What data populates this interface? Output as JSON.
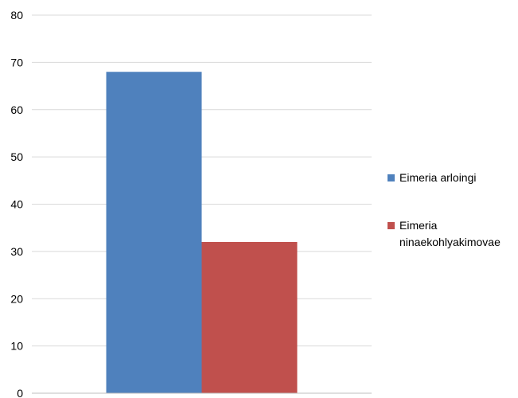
{
  "chart_data": {
    "type": "bar",
    "categories": [
      ""
    ],
    "series": [
      {
        "name": "Eimeria arloingi",
        "values": [
          68
        ],
        "color": "#4F81BD"
      },
      {
        "name": "Eimeria ninaekohlyakimovae",
        "name_lines": [
          "Eimeria",
          "ninaekohlyakimovae"
        ],
        "values": [
          32
        ],
        "color": "#C0504D"
      }
    ],
    "title": "",
    "xlabel": "",
    "ylabel": "",
    "ylim": [
      0,
      80
    ],
    "yticks": [
      0,
      10,
      20,
      30,
      40,
      50,
      60,
      70,
      80
    ],
    "grid": true,
    "legend": "right"
  }
}
